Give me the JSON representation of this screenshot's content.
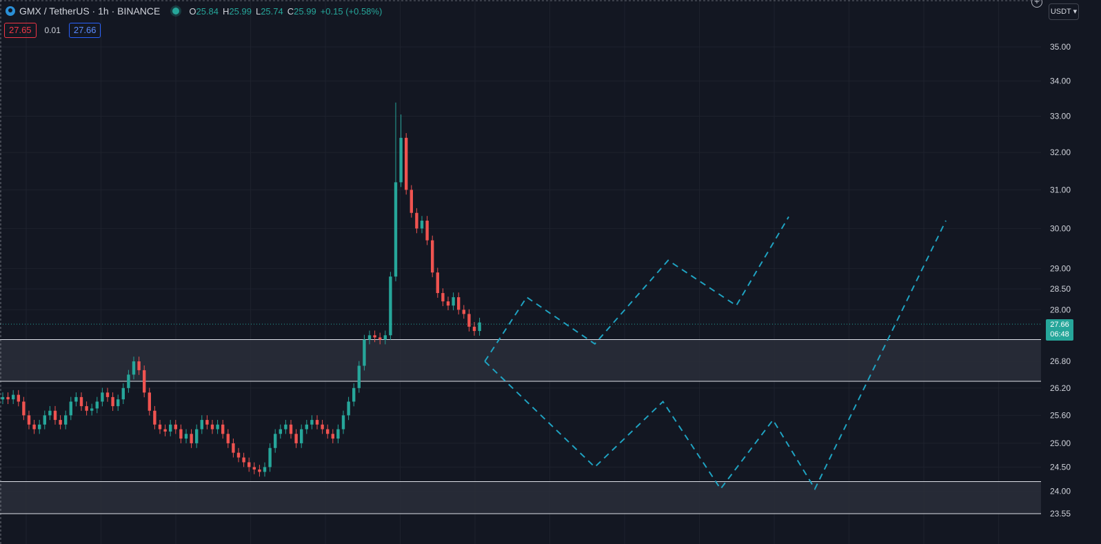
{
  "header": {
    "symbol": "GMX / TetherUS · 1h · BINANCE",
    "open_label": "O",
    "open": "25.84",
    "high_label": "H",
    "high": "25.99",
    "low_label": "L",
    "low": "25.74",
    "close_label": "C",
    "close": "25.99",
    "change": "+0.15 (+0.58%)"
  },
  "quote": {
    "sell": "27.65",
    "spread": "0.01",
    "buy": "27.66"
  },
  "currency": "USDT",
  "last_price": {
    "value": "27.66",
    "countdown": "06:48"
  },
  "colors": {
    "background": "#131722",
    "up": "#26a69a",
    "down": "#ef5350",
    "projection": "#1fa3c2",
    "zone": "#2a2e39"
  },
  "chart_data": {
    "type": "candlestick",
    "y_axis_ticks": [
      "35.00",
      "34.00",
      "33.00",
      "32.00",
      "31.00",
      "30.00",
      "29.00",
      "28.50",
      "28.00",
      "26.80",
      "26.20",
      "25.60",
      "25.00",
      "24.50",
      "24.00",
      "23.55"
    ],
    "y_scale": "log",
    "grid": true,
    "zones": [
      {
        "from": 26.35,
        "to": 27.3
      },
      {
        "from": 23.55,
        "to": 24.2
      }
    ],
    "last_price": 27.66,
    "candles_close": [
      26.0,
      25.95,
      26.05,
      25.9,
      25.6,
      25.4,
      25.3,
      25.4,
      25.6,
      25.7,
      25.5,
      25.4,
      25.6,
      25.9,
      26.0,
      25.8,
      25.7,
      25.75,
      25.9,
      26.1,
      26.0,
      25.8,
      25.95,
      26.2,
      26.5,
      26.8,
      26.6,
      26.1,
      25.7,
      25.4,
      25.3,
      25.25,
      25.4,
      25.3,
      25.1,
      25.2,
      25.0,
      25.3,
      25.5,
      25.4,
      25.3,
      25.4,
      25.2,
      25.0,
      24.8,
      24.7,
      24.6,
      24.5,
      24.45,
      24.4,
      24.5,
      24.9,
      25.2,
      25.3,
      25.4,
      25.2,
      25.0,
      25.3,
      25.4,
      25.5,
      25.4,
      25.3,
      25.2,
      25.1,
      25.3,
      25.6,
      25.9,
      26.2,
      26.7,
      27.3,
      27.4,
      27.35,
      27.3,
      27.4,
      28.8,
      31.2,
      32.4,
      31.0,
      30.4,
      30.0,
      30.2,
      29.7,
      28.9,
      28.4,
      28.2,
      28.1,
      28.3,
      28.0,
      27.9,
      27.6,
      27.5,
      27.7
    ],
    "projection_path_1": [
      {
        "bar": 92,
        "price": 26.8
      },
      {
        "bar": 100,
        "price": 28.3
      },
      {
        "bar": 113,
        "price": 27.2
      },
      {
        "bar": 127,
        "price": 29.2
      },
      {
        "bar": 140,
        "price": 28.1
      },
      {
        "bar": 150,
        "price": 30.3
      }
    ],
    "projection_path_2": [
      {
        "bar": 92,
        "price": 26.8
      },
      {
        "bar": 113,
        "price": 24.5
      },
      {
        "bar": 126,
        "price": 25.9
      },
      {
        "bar": 137,
        "price": 24.05
      },
      {
        "bar": 147,
        "price": 25.5
      },
      {
        "bar": 155,
        "price": 24.05
      },
      {
        "bar": 180,
        "price": 30.2
      }
    ]
  }
}
